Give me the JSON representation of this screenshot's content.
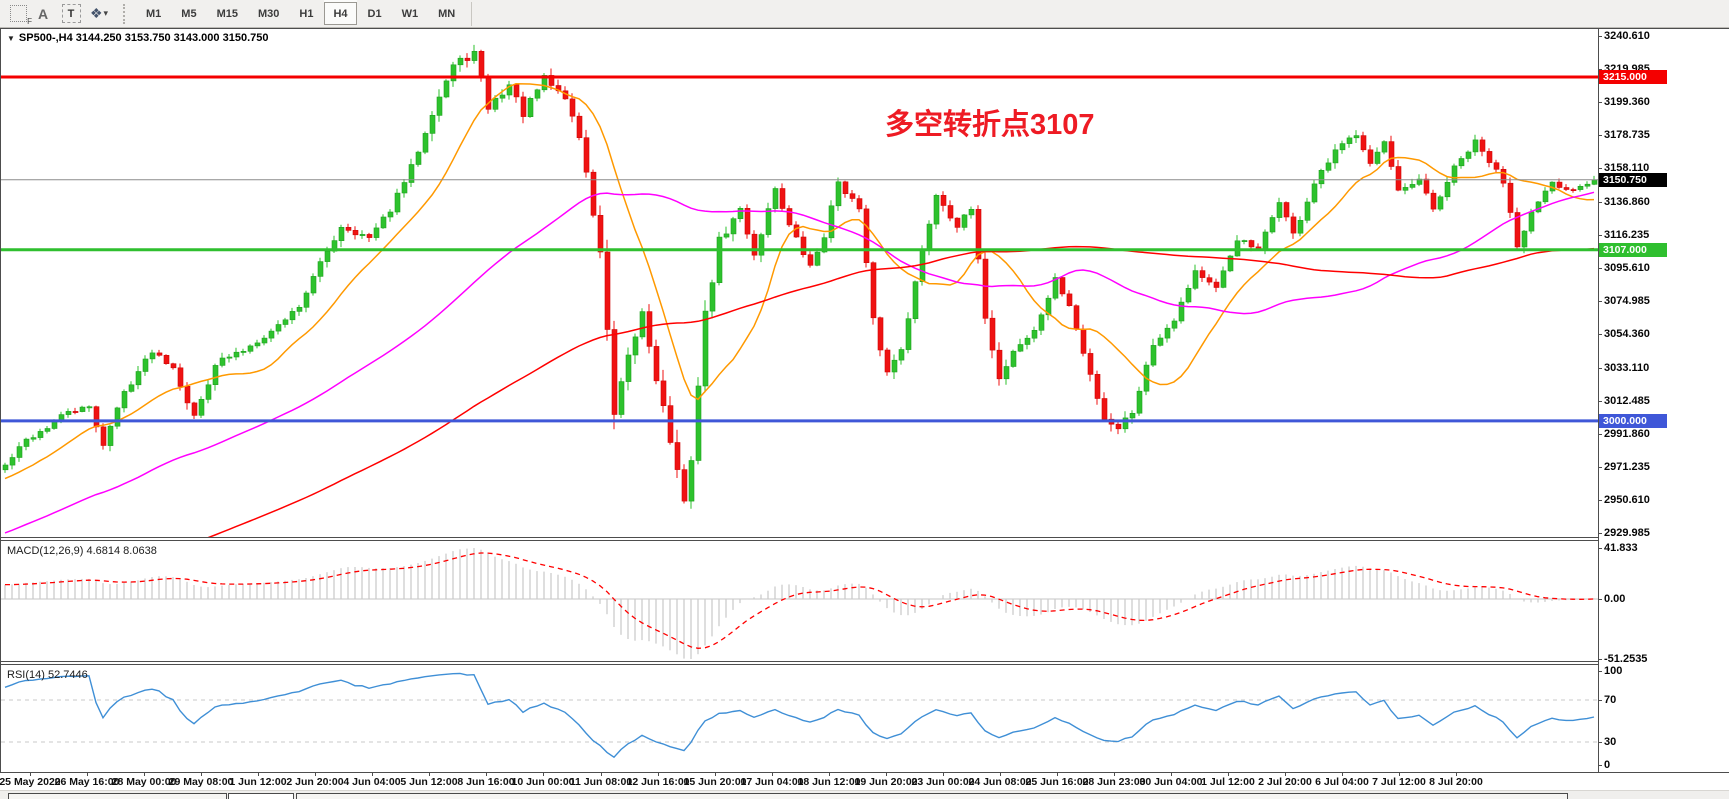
{
  "toolbar": {
    "tool_icons": [
      {
        "name": "snap-grid-icon",
        "glyph": "F"
      },
      {
        "name": "font-icon",
        "glyph": "A"
      },
      {
        "name": "text-label-icon",
        "glyph": "T"
      },
      {
        "name": "arrows-tool-icon",
        "glyph": "❖"
      },
      {
        "name": "dropdown-caret-icon",
        "glyph": "▾"
      }
    ],
    "timeframes": [
      "M1",
      "M5",
      "M15",
      "M30",
      "H1",
      "H4",
      "D1",
      "W1",
      "MN"
    ],
    "active_timeframe": "H4"
  },
  "main_chart": {
    "symbol_line": "SP500-,H4  3144.250 3153.750 3143.000 3150.750",
    "annotation": {
      "text": "多空转折点3107",
      "color": "#ee1b24"
    },
    "y_ticks": [
      "3240.610",
      "3219.985",
      "3199.360",
      "3178.735",
      "3158.110",
      "3136.860",
      "3116.235",
      "3095.610",
      "3074.985",
      "3054.360",
      "3033.110",
      "3012.485",
      "2991.860",
      "2971.235",
      "2950.610",
      "2929.985"
    ],
    "hlines": [
      {
        "label": "3215.000",
        "value": 3215.0,
        "color": "#f40000"
      },
      {
        "label": "3107.000",
        "value": 3107.0,
        "color": "#2fbf2f"
      },
      {
        "label": "3000.000",
        "value": 3000.0,
        "color": "#3f57d8"
      }
    ],
    "current_price": {
      "label": "3150.750",
      "value": 3150.75,
      "badge_bg": "#000000",
      "line_color": "#8c8c8c"
    },
    "price_range": {
      "top": 3245.0,
      "bottom": 2927.4
    },
    "candle_colors": {
      "up": "#2dc22d",
      "up_stroke": "#1fa01f",
      "down": "#ef1212",
      "down_stroke": "#cf0808"
    },
    "ma_lines": [
      {
        "name": "fast-ma",
        "period": 13,
        "color": "#ff9900"
      },
      {
        "name": "mid-ma",
        "period": 55,
        "color": "#ff00ff"
      },
      {
        "name": "slow-ma",
        "period": 120,
        "color": "#ff0000"
      }
    ],
    "bars": 228,
    "seed": 42,
    "prehistory": {
      "start": 2762,
      "bars": 130
    },
    "waypoints": [
      [
        0,
        2972,
        1.2
      ],
      [
        3,
        2988,
        1
      ],
      [
        6,
        2996,
        1
      ],
      [
        9,
        3006,
        1
      ],
      [
        12,
        3008,
        1
      ],
      [
        14,
        2986,
        1.4
      ],
      [
        17,
        3018,
        1.2
      ],
      [
        21,
        3044,
        1
      ],
      [
        24,
        3034,
        1
      ],
      [
        27,
        3002,
        1.5
      ],
      [
        30,
        3036,
        1.2
      ],
      [
        34,
        3044,
        0.8
      ],
      [
        38,
        3056,
        0.8
      ],
      [
        42,
        3072,
        1
      ],
      [
        45,
        3098,
        1.3
      ],
      [
        48,
        3122,
        1.3
      ],
      [
        52,
        3114,
        1
      ],
      [
        55,
        3132,
        1
      ],
      [
        58,
        3158,
        1.5
      ],
      [
        61,
        3194,
        1.8
      ],
      [
        64,
        3222,
        1.6
      ],
      [
        67,
        3230,
        1.4
      ],
      [
        69,
        3196,
        1.6
      ],
      [
        72,
        3210,
        1.4
      ],
      [
        74,
        3192,
        1.4
      ],
      [
        77,
        3214,
        1.4
      ],
      [
        80,
        3202,
        1.3
      ],
      [
        82,
        3178,
        1.6
      ],
      [
        85,
        3106,
        2.4
      ],
      [
        87,
        3002,
        3
      ],
      [
        89,
        3038,
        2.4
      ],
      [
        91,
        3068,
        2
      ],
      [
        93,
        3028,
        2.2
      ],
      [
        95,
        2988,
        2.4
      ],
      [
        97,
        2946,
        2.8
      ],
      [
        98,
        2978,
        2
      ],
      [
        100,
        3066,
        2.4
      ],
      [
        102,
        3112,
        1.8
      ],
      [
        105,
        3132,
        1.3
      ],
      [
        107,
        3104,
        1.4
      ],
      [
        110,
        3146,
        1.3
      ],
      [
        112,
        3122,
        1.2
      ],
      [
        115,
        3096,
        1.3
      ],
      [
        117,
        3116,
        1.2
      ],
      [
        119,
        3150,
        1.2
      ],
      [
        122,
        3132,
        1.2
      ],
      [
        124,
        3062,
        1.8
      ],
      [
        126,
        3030,
        1.6
      ],
      [
        128,
        3046,
        1.3
      ],
      [
        131,
        3106,
        1.5
      ],
      [
        133,
        3142,
        1.3
      ],
      [
        136,
        3122,
        1.1
      ],
      [
        138,
        3132,
        1
      ],
      [
        140,
        3066,
        1.6
      ],
      [
        142,
        3026,
        1.6
      ],
      [
        144,
        3044,
        1.2
      ],
      [
        147,
        3056,
        1
      ],
      [
        150,
        3088,
        1.2
      ],
      [
        152,
        3072,
        1
      ],
      [
        154,
        3042,
        1.3
      ],
      [
        157,
        3002,
        1.6
      ],
      [
        159,
        2996,
        1.6
      ],
      [
        161,
        3006,
        1.3
      ],
      [
        164,
        3048,
        1.3
      ],
      [
        167,
        3064,
        1
      ],
      [
        170,
        3094,
        1.2
      ],
      [
        173,
        3082,
        1
      ],
      [
        176,
        3114,
        1.2
      ],
      [
        179,
        3106,
        1
      ],
      [
        182,
        3138,
        1.2
      ],
      [
        184,
        3116,
        1.3
      ],
      [
        187,
        3148,
        1.2
      ],
      [
        190,
        3168,
        1.2
      ],
      [
        193,
        3180,
        1.1
      ],
      [
        195,
        3162,
        1
      ],
      [
        197,
        3174,
        1
      ],
      [
        199,
        3142,
        1.3
      ],
      [
        202,
        3150,
        1
      ],
      [
        204,
        3132,
        1.2
      ],
      [
        207,
        3158,
        1.1
      ],
      [
        210,
        3174,
        1.1
      ],
      [
        212,
        3162,
        1
      ],
      [
        214,
        3150,
        1.2
      ],
      [
        216,
        3112,
        2
      ],
      [
        218,
        3130,
        1.3
      ],
      [
        221,
        3148,
        1
      ],
      [
        223,
        3144,
        0.9
      ],
      [
        227,
        3150.75,
        0.9
      ]
    ]
  },
  "macd_pane": {
    "label": "MACD(12,26,9) 4.6814 8.0638",
    "fast": 12,
    "slow": 26,
    "signal": 9,
    "ticks": [
      {
        "label": "41.833",
        "value": 41.833
      },
      {
        "label": "0.00",
        "value": 0
      },
      {
        "label": "-51.2535",
        "value": -51.2535
      }
    ],
    "histogram_color": "#cbcbcb",
    "signal_color": "#ff0000",
    "zero_line_color": "#c4c4c4"
  },
  "rsi_pane": {
    "label": "RSI(14) 52.7446",
    "period": 14,
    "ticks": [
      {
        "label": "100",
        "value": 100
      },
      {
        "label": "70",
        "value": 70
      },
      {
        "label": "30",
        "value": 30
      },
      {
        "label": "0",
        "value": 0
      }
    ],
    "levels": [
      70,
      30
    ],
    "line_color": "#3f8fd6",
    "level_color": "#c8c8c8"
  },
  "time_axis": {
    "labels": [
      "25 May 2020",
      "26 May 16:00",
      "28 May 00:00",
      "29 May 08:00",
      "1 Jun 12:00",
      "2 Jun 20:00",
      "4 Jun 04:00",
      "5 Jun 12:00",
      "8 Jun 16:00",
      "10 Jun 00:00",
      "11 Jun 08:00",
      "12 Jun 16:00",
      "15 Jun 20:00",
      "17 Jun 04:00",
      "18 Jun 12:00",
      "19 Jun 20:00",
      "23 Jun 00:00",
      "24 Jun 08:00",
      "25 Jun 16:00",
      "28 Jun 23:00",
      "30 Jun 04:00",
      "1 Jul 12:00",
      "2 Jul 20:00",
      "6 Jul 04:00",
      "7 Jul 12:00",
      "8 Jul 20:00"
    ]
  },
  "bottom_tabs": {
    "tabs": [
      {
        "name": "chart-tab-1",
        "active": false
      },
      {
        "name": "chart-tab-2",
        "active": true
      },
      {
        "name": "chart-tab-3",
        "active": false
      }
    ]
  }
}
